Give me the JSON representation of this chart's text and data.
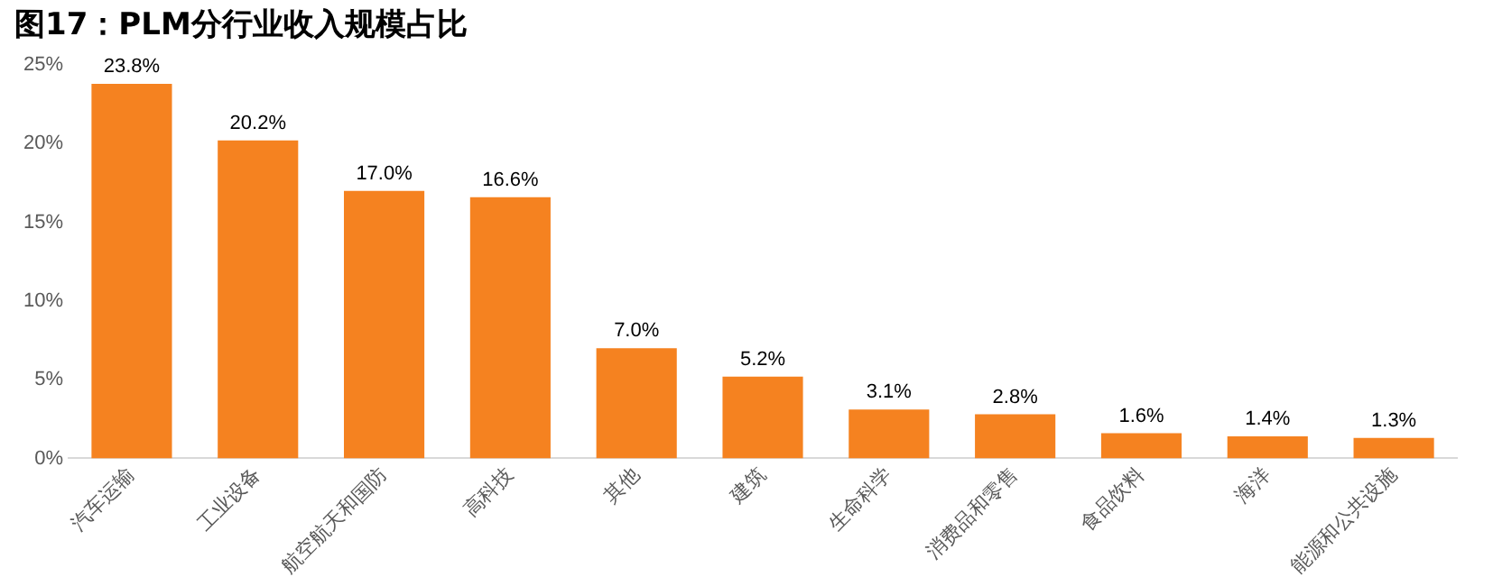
{
  "chart_data": {
    "type": "bar",
    "title": "图17：PLM分行业收入规模占比",
    "categories": [
      "汽车运输",
      "工业设备",
      "航空航天和国防",
      "高科技",
      "其他",
      "建筑",
      "生命科学",
      "消费品和零售",
      "食品饮料",
      "海洋",
      "能源和公共设施"
    ],
    "values": [
      23.8,
      20.2,
      17.0,
      16.6,
      7.0,
      5.2,
      3.1,
      2.8,
      1.6,
      1.4,
      1.3
    ],
    "value_labels": [
      "23.8%",
      "20.2%",
      "17.0%",
      "16.6%",
      "7.0%",
      "5.2%",
      "3.1%",
      "2.8%",
      "1.6%",
      "1.4%",
      "1.3%"
    ],
    "color": "#f58220",
    "ylim": [
      0,
      25
    ],
    "yticks": [
      {
        "value": 0,
        "label": "0%"
      },
      {
        "value": 5,
        "label": "5%"
      },
      {
        "value": 10,
        "label": "10%"
      },
      {
        "value": 15,
        "label": "15%"
      },
      {
        "value": 20,
        "label": "20%"
      },
      {
        "value": 25,
        "label": "25%"
      }
    ],
    "grid": false,
    "legend": false
  }
}
